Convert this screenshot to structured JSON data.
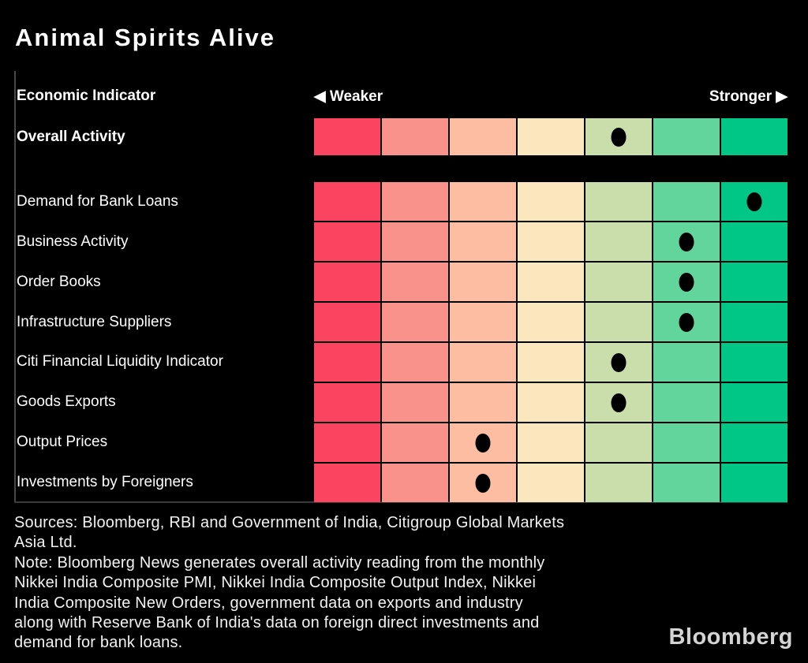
{
  "title": "Animal Spirits Alive",
  "header": {
    "indicator_label": "Economic Indicator",
    "weaker_label": "◀ Weaker",
    "stronger_label": "Stronger ▶"
  },
  "chart_data": {
    "type": "heatmap",
    "title": "Animal Spirits Alive",
    "scale_levels": 7,
    "scale_axis": {
      "left_label": "◀ Weaker",
      "right_label": "Stronger ▶"
    },
    "scale_colors": [
      "#FB4460",
      "#F9928B",
      "#FCBDA3",
      "#FAE7BD",
      "#C9DEAA",
      "#62D59C",
      "#00C686"
    ],
    "dot_color": "#000000",
    "overall_row": {
      "label": "Overall Activity",
      "value": 5
    },
    "rows": [
      {
        "label": "Demand for Bank Loans",
        "value": 7
      },
      {
        "label": "Business Activity",
        "value": 6
      },
      {
        "label": "Order Books",
        "value": 6
      },
      {
        "label": "Infrastructure Suppliers",
        "value": 6
      },
      {
        "label": "Citi Financial Liquidity Indicator",
        "value": 5
      },
      {
        "label": "Goods Exports",
        "value": 5
      },
      {
        "label": "Output Prices",
        "value": 3
      },
      {
        "label": "Investments by Foreigners",
        "value": 3
      }
    ]
  },
  "footer": {
    "lines": [
      "Sources: Bloomberg, RBI and Government of India, Citigroup Global Markets",
      "Asia Ltd.",
      "Note: Bloomberg News generates overall activity reading from the monthly",
      "Nikkei India Composite PMI, Nikkei India Composite Output Index, Nikkei",
      "India Composite New Orders, government data on exports and industry",
      "along with Reserve Bank of India's data on foreign direct investments and",
      "demand for bank loans."
    ],
    "logo": "Bloomberg"
  }
}
